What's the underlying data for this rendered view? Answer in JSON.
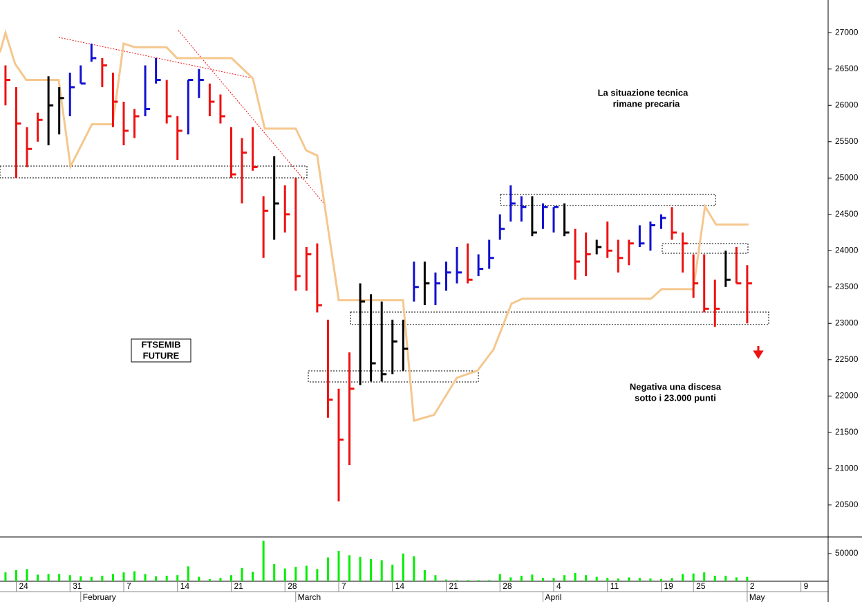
{
  "chart_data": [
    {
      "type": "ohlc",
      "x": [
        0,
        1,
        2,
        3,
        4,
        5,
        6,
        7,
        8,
        9,
        10,
        11,
        12,
        13,
        14,
        15,
        16,
        17,
        18,
        19,
        20,
        21,
        22,
        23,
        24,
        25,
        26,
        27,
        28,
        29,
        30,
        31,
        32,
        33,
        34,
        35,
        36,
        37,
        38,
        39,
        40,
        41,
        42,
        43,
        44,
        45,
        46,
        47,
        48,
        49,
        50,
        51,
        52,
        53,
        54,
        55,
        56,
        57,
        58,
        59,
        60,
        61,
        62,
        63,
        64,
        65,
        66,
        67,
        68,
        69
      ],
      "high": [
        26550,
        26250,
        25700,
        25900,
        26400,
        26250,
        26450,
        26550,
        26850,
        26650,
        26450,
        26050,
        25950,
        26550,
        26650,
        26350,
        25850,
        26350,
        26500,
        26300,
        26150,
        25700,
        25550,
        25700,
        24750,
        25300,
        24900,
        25000,
        24050,
        24100,
        23050,
        22100,
        22600,
        23550,
        23400,
        23300,
        23050,
        23050,
        23850,
        23850,
        23700,
        23850,
        24050,
        24100,
        23950,
        24150,
        24500,
        24900,
        24750,
        24750,
        24650,
        24600,
        24650,
        24300,
        24250,
        24150,
        24400,
        24150,
        24150,
        24350,
        24400,
        24500,
        24600,
        24250,
        23950,
        23950,
        23600,
        24000,
        24050,
        23800
      ],
      "low": [
        26000,
        25000,
        25150,
        25500,
        25450,
        25600,
        25850,
        26300,
        26600,
        26250,
        25700,
        25450,
        25550,
        25850,
        26300,
        25750,
        25250,
        25600,
        26100,
        25850,
        25750,
        25000,
        24650,
        25100,
        23900,
        24150,
        24250,
        23450,
        23450,
        23150,
        21700,
        20550,
        21050,
        22150,
        22200,
        22200,
        22300,
        22350,
        23300,
        23250,
        23250,
        23450,
        23550,
        23550,
        23650,
        23750,
        24150,
        24400,
        24400,
        24200,
        24300,
        24250,
        24200,
        23600,
        23650,
        23950,
        23900,
        23700,
        23800,
        24050,
        24000,
        24300,
        24150,
        23700,
        23350,
        23150,
        22950,
        23500,
        23550,
        23000
      ],
      "close": [
        26350,
        25750,
        25400,
        25800,
        26000,
        26100,
        26250,
        26300,
        26650,
        26550,
        26050,
        25650,
        25850,
        25950,
        26350,
        25850,
        25650,
        26350,
        26350,
        26050,
        25850,
        25050,
        25350,
        25150,
        24550,
        24650,
        24500,
        23650,
        23950,
        23250,
        21950,
        21400,
        22100,
        23300,
        22450,
        22300,
        22750,
        22650,
        23500,
        23550,
        23550,
        23700,
        23700,
        23600,
        23750,
        23900,
        24300,
        24650,
        24600,
        24250,
        24600,
        24600,
        24250,
        23850,
        23950,
        24050,
        24000,
        23900,
        24100,
        24100,
        24350,
        24450,
        24250,
        24100,
        23550,
        23200,
        23200,
        23600,
        23550,
        23550
      ],
      "colors": [
        "#ee1111",
        "#ee1111",
        "#ee1111",
        "#ee1111",
        "#000000",
        "#000000",
        "#1010d0",
        "#1010d0",
        "#1010d0",
        "#ee1111",
        "#ee1111",
        "#ee1111",
        "#ee1111",
        "#1010d0",
        "#1010d0",
        "#ee1111",
        "#ee1111",
        "#1010d0",
        "#1010d0",
        "#ee1111",
        "#ee1111",
        "#ee1111",
        "#ee1111",
        "#ee1111",
        "#ee1111",
        "#000000",
        "#ee1111",
        "#ee1111",
        "#ee1111",
        "#ee1111",
        "#ee1111",
        "#ee1111",
        "#ee1111",
        "#000000",
        "#000000",
        "#000000",
        "#000000",
        "#000000",
        "#1010d0",
        "#000000",
        "#1010d0",
        "#1010d0",
        "#1010d0",
        "#ee1111",
        "#1010d0",
        "#1010d0",
        "#1010d0",
        "#1010d0",
        "#1010d0",
        "#000000",
        "#1010d0",
        "#1010d0",
        "#000000",
        "#ee1111",
        "#ee1111",
        "#000000",
        "#ee1111",
        "#ee1111",
        "#ee1111",
        "#1010d0",
        "#1010d0",
        "#1010d0",
        "#ee1111",
        "#ee1111",
        "#ee1111",
        "#ee1111",
        "#ee1111",
        "#000000",
        "#ee1111",
        "#ee1111"
      ],
      "xlim": [
        -0.51,
        76.53
      ],
      "ylim": [
        20060,
        27450
      ],
      "yticks": [
        20500,
        21000,
        21500,
        22000,
        22500,
        23000,
        23500,
        24000,
        24500,
        25000,
        25500,
        26000,
        26500,
        27000
      ],
      "trail": {
        "color": "#f5c78e",
        "x": [
          -0.51,
          0,
          0.9,
          1.93,
          4.95,
          6.05,
          8.04,
          9.97,
          10.99,
          12.03,
          14.98,
          15.95,
          21.03,
          23.02,
          24.12,
          27.01,
          27.97,
          29,
          31,
          36.98,
          38,
          39.87,
          41.99,
          43.92,
          45.4,
          47.07,
          48.1,
          60.06,
          61.03,
          63.99,
          65.08,
          66.1,
          69.13
        ],
        "values": [
          26730,
          27000,
          26570,
          26350,
          26350,
          25160,
          25740,
          25740,
          26850,
          26800,
          26800,
          26650,
          26650,
          26370,
          25680,
          25680,
          25380,
          25310,
          23320,
          23320,
          21660,
          21740,
          22250,
          22350,
          22640,
          23270,
          23340,
          23340,
          23470,
          23470,
          24610,
          24360,
          24360
        ]
      },
      "annotations": [
        {
          "lines": [
            "La situazione tecnica",
            "rimane precaria"
          ],
          "color": "#ee1111"
        },
        {
          "lines": [
            "Negativa una discesa",
            "sotto i 23.000 punti"
          ],
          "color": "#ee1111"
        },
        {
          "lines": [
            "FTSEMIB",
            "FUTURE"
          ],
          "color": "#000000"
        }
      ]
    },
    {
      "type": "bar",
      "x": [
        0,
        1,
        2,
        3,
        4,
        5,
        6,
        7,
        8,
        9,
        10,
        11,
        12,
        13,
        14,
        15,
        16,
        17,
        18,
        19,
        20,
        21,
        22,
        23,
        24,
        25,
        26,
        27,
        28,
        29,
        30,
        31,
        32,
        33,
        34,
        35,
        36,
        37,
        38,
        39,
        40,
        41,
        42,
        43,
        44,
        45,
        46,
        47,
        48,
        49,
        50,
        51,
        52,
        53,
        54,
        55,
        56,
        57,
        58,
        59,
        60,
        61,
        62,
        63,
        64,
        65,
        66,
        67,
        68,
        69
      ],
      "values": [
        16000,
        20000,
        22000,
        12000,
        13000,
        13000,
        11000,
        9000,
        8000,
        10000,
        13000,
        16000,
        18000,
        13000,
        9000,
        10000,
        11000,
        27000,
        8000,
        4000,
        6000,
        11000,
        24000,
        17000,
        73000,
        31000,
        23000,
        26000,
        28000,
        22000,
        43000,
        55000,
        47000,
        44000,
        40000,
        38000,
        30000,
        50000,
        45000,
        20000,
        11000,
        3000,
        2000,
        2000,
        2000,
        2000,
        13000,
        7000,
        10000,
        12000,
        6000,
        6000,
        11000,
        15000,
        11000,
        8000,
        6000,
        5000,
        7000,
        6000,
        5000,
        4000,
        6000,
        13000,
        14000,
        16000,
        10000,
        10000,
        7000,
        8000
      ],
      "color": "#00ee00",
      "xlim": [
        -0.51,
        76.53
      ],
      "ylim": [
        0,
        78750
      ],
      "yticks": [
        50000
      ],
      "xticks": [
        {
          "value": 1,
          "label": "24"
        },
        {
          "value": 6,
          "label": "31"
        },
        {
          "value": 11,
          "label": "7"
        },
        {
          "value": 16,
          "label": "14"
        },
        {
          "value": 21,
          "label": "21"
        },
        {
          "value": 26,
          "label": "28"
        },
        {
          "value": 31,
          "label": "7"
        },
        {
          "value": 36,
          "label": "14"
        },
        {
          "value": 41,
          "label": "21"
        },
        {
          "value": 46,
          "label": "28"
        },
        {
          "value": 51,
          "label": "4"
        },
        {
          "value": 56,
          "label": "11"
        },
        {
          "value": 61,
          "label": "19"
        },
        {
          "value": 64,
          "label": "25"
        },
        {
          "value": 69,
          "label": "2"
        },
        {
          "value": 74,
          "label": "9"
        }
      ],
      "month_ticks": [
        {
          "value": 7,
          "label": "February"
        },
        {
          "value": 27,
          "label": "March"
        },
        {
          "value": 50,
          "label": "April"
        },
        {
          "value": 69,
          "label": "May"
        }
      ]
    }
  ]
}
